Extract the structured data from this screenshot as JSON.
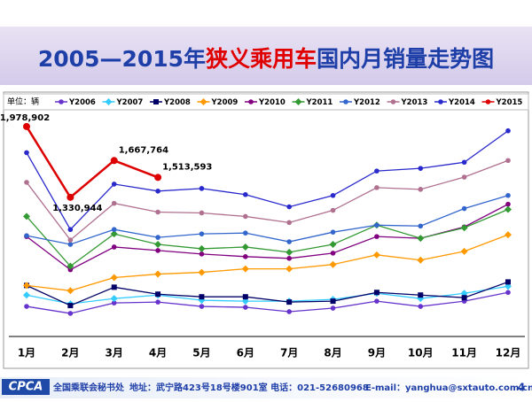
{
  "chart_data": {
    "type": "line",
    "title": [
      "2005—2015年",
      "狭义乘用车",
      "国内月销量走势图"
    ],
    "unit_label": "单位：辆",
    "categories": [
      "1月",
      "2月",
      "3月",
      "4月",
      "5月",
      "6月",
      "7月",
      "8月",
      "9月",
      "10月",
      "11月",
      "12月"
    ],
    "ylim": [
      0,
      2100000
    ],
    "series": [
      {
        "name": "Y2006",
        "color": "#6633cc",
        "marker": "circle",
        "values": [
          332000,
          268000,
          364000,
          372000,
          332000,
          324000,
          284000,
          316000,
          380000,
          332000,
          380000,
          460000
        ]
      },
      {
        "name": "Y2007",
        "color": "#33ccff",
        "marker": "diamond",
        "values": [
          436000,
          356000,
          404000,
          436000,
          388000,
          380000,
          380000,
          396000,
          452000,
          404000,
          452000,
          516000
        ]
      },
      {
        "name": "Y2008",
        "color": "#000066",
        "marker": "square",
        "values": [
          524000,
          340000,
          508000,
          444000,
          420000,
          420000,
          372000,
          380000,
          460000,
          436000,
          412000,
          556000
        ]
      },
      {
        "name": "Y2009",
        "color": "#ff9900",
        "marker": "diamond",
        "values": [
          524000,
          476000,
          596000,
          628000,
          644000,
          676000,
          676000,
          716000,
          804000,
          756000,
          836000,
          988000
        ]
      },
      {
        "name": "Y2010",
        "color": "#800080",
        "marker": "circle",
        "values": [
          972000,
          668000,
          876000,
          844000,
          812000,
          788000,
          772000,
          820000,
          972000,
          956000,
          1060000,
          1268000
        ]
      },
      {
        "name": "Y2011",
        "color": "#339933",
        "marker": "diamond",
        "values": [
          1156000,
          700000,
          996000,
          900000,
          860000,
          876000,
          828000,
          900000,
          1076000,
          956000,
          1052000,
          1220000
        ]
      },
      {
        "name": "Y2012",
        "color": "#3366cc",
        "marker": "circle",
        "values": [
          980000,
          900000,
          1036000,
          964000,
          996000,
          1004000,
          924000,
          1012000,
          1076000,
          1068000,
          1228000,
          1348000
        ]
      },
      {
        "name": "Y2013",
        "color": "#b07090",
        "marker": "circle",
        "values": [
          1468000,
          940000,
          1276000,
          1196000,
          1188000,
          1156000,
          1100000,
          1212000,
          1420000,
          1404000,
          1516000,
          1668000
        ]
      },
      {
        "name": "Y2014",
        "color": "#2a2acc",
        "marker": "circle",
        "values": [
          1740000,
          1036000,
          1452000,
          1388000,
          1412000,
          1356000,
          1244000,
          1348000,
          1572000,
          1596000,
          1652000,
          1940000
        ]
      },
      {
        "name": "Y2015",
        "color": "#dd0000",
        "marker": "circle",
        "values": [
          1978902,
          1330944,
          1667764,
          1513593,
          null,
          null,
          null,
          null,
          null,
          null,
          null,
          null
        ],
        "value_labels": [
          "1,978,902",
          "1,330,944",
          "1,667,764",
          "1,513,593",
          null,
          null,
          null,
          null,
          null,
          null,
          null,
          null
        ]
      }
    ],
    "footer": {
      "logo": "CPCA",
      "org": "全国乘联会秘书处",
      "address": "地址：武宁路423号18号楼901室  电话：021-52680968",
      "email": "E-mail：yanghua@sxtauto.com.cn",
      "page": "4"
    }
  }
}
